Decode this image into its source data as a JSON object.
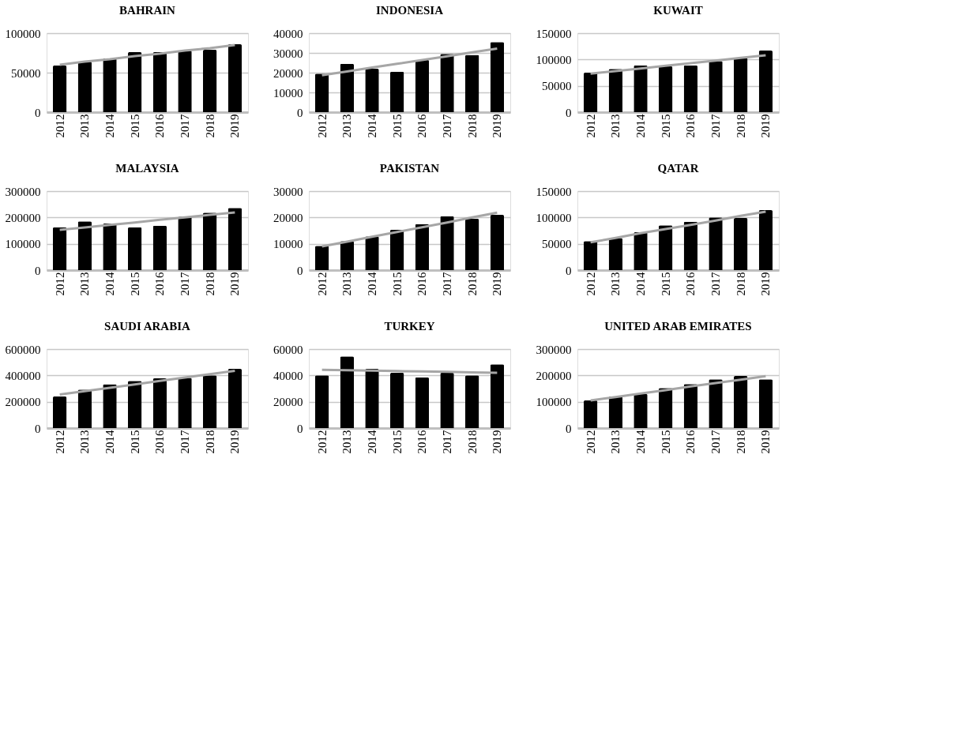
{
  "chart_data": [
    {
      "type": "bar",
      "title": "BAHRAIN",
      "categories": [
        "2012",
        "2013",
        "2014",
        "2015",
        "2016",
        "2017",
        "2018",
        "2019"
      ],
      "ylim": [
        0,
        100000
      ],
      "yticks": [
        0,
        50000,
        100000
      ],
      "grid": "y",
      "series": [
        {
          "type": "bar",
          "color": "#000000",
          "values": [
            59000,
            64000,
            68000,
            76000,
            76000,
            78000,
            79000,
            86000
          ]
        },
        {
          "type": "line",
          "color": "#a6a6a6",
          "values": [
            60000,
            64000,
            67000,
            71000,
            74000,
            78000,
            81000,
            85000
          ]
        }
      ]
    },
    {
      "type": "bar",
      "title": "INDONESIA",
      "categories": [
        "2012",
        "2013",
        "2014",
        "2015",
        "2016",
        "2017",
        "2018",
        "2019"
      ],
      "ylim": [
        0,
        40000
      ],
      "yticks": [
        0,
        10000,
        20000,
        30000,
        40000
      ],
      "grid": "y",
      "series": [
        {
          "type": "bar",
          "color": "#000000",
          "values": [
            19500,
            24500,
            22000,
            20500,
            26500,
            29500,
            29000,
            35500
          ]
        },
        {
          "type": "line",
          "color": "#a6a6a6",
          "values": [
            18700,
            20600,
            22600,
            24500,
            26400,
            28300,
            30300,
            32200
          ]
        }
      ]
    },
    {
      "type": "bar",
      "title": "KUWAIT",
      "categories": [
        "2012",
        "2013",
        "2014",
        "2015",
        "2016",
        "2017",
        "2018",
        "2019"
      ],
      "ylim": [
        0,
        150000
      ],
      "yticks": [
        0,
        50000,
        100000,
        150000
      ],
      "grid": "y",
      "series": [
        {
          "type": "bar",
          "color": "#000000",
          "values": [
            75000,
            82000,
            89000,
            87000,
            89000,
            97000,
            103000,
            117000
          ]
        },
        {
          "type": "line",
          "color": "#a6a6a6",
          "values": [
            73000,
            78000,
            83000,
            88000,
            93000,
            98000,
            103000,
            108000
          ]
        }
      ]
    },
    {
      "type": "bar",
      "title": "MALAYSIA",
      "categories": [
        "2012",
        "2013",
        "2014",
        "2015",
        "2016",
        "2017",
        "2018",
        "2019"
      ],
      "ylim": [
        0,
        300000
      ],
      "yticks": [
        0,
        100000,
        200000,
        300000
      ],
      "grid": "y",
      "series": [
        {
          "type": "bar",
          "color": "#000000",
          "values": [
            163000,
            185000,
            177000,
            163000,
            169000,
            203000,
            218000,
            236000
          ]
        },
        {
          "type": "line",
          "color": "#a6a6a6",
          "values": [
            153000,
            162000,
            172000,
            181000,
            191000,
            200000,
            210000,
            219000
          ]
        }
      ]
    },
    {
      "type": "bar",
      "title": "PAKISTAN",
      "categories": [
        "2012",
        "2013",
        "2014",
        "2015",
        "2016",
        "2017",
        "2018",
        "2019"
      ],
      "ylim": [
        0,
        30000
      ],
      "yticks": [
        0,
        10000,
        20000,
        30000
      ],
      "grid": "y",
      "series": [
        {
          "type": "bar",
          "color": "#000000",
          "values": [
            9200,
            11000,
            12800,
            15400,
            17500,
            20500,
            19500,
            21000
          ]
        },
        {
          "type": "line",
          "color": "#a6a6a6",
          "values": [
            9000,
            10800,
            12700,
            14500,
            16300,
            18100,
            20000,
            21800
          ]
        }
      ]
    },
    {
      "type": "bar",
      "title": "QATAR",
      "categories": [
        "2012",
        "2013",
        "2014",
        "2015",
        "2016",
        "2017",
        "2018",
        "2019"
      ],
      "ylim": [
        0,
        150000
      ],
      "yticks": [
        0,
        50000,
        100000,
        150000
      ],
      "grid": "y",
      "series": [
        {
          "type": "bar",
          "color": "#000000",
          "values": [
            55000,
            61000,
            72000,
            85000,
            92000,
            100000,
            99000,
            114000
          ]
        },
        {
          "type": "line",
          "color": "#a6a6a6",
          "values": [
            53000,
            61000,
            70000,
            78000,
            86000,
            94000,
            103000,
            111000
          ]
        }
      ]
    },
    {
      "type": "bar",
      "title": "SAUDI ARABIA",
      "categories": [
        "2012",
        "2013",
        "2014",
        "2015",
        "2016",
        "2017",
        "2018",
        "2019"
      ],
      "ylim": [
        0,
        600000
      ],
      "yticks": [
        0,
        200000,
        400000,
        600000
      ],
      "grid": "y",
      "series": [
        {
          "type": "bar",
          "color": "#000000",
          "values": [
            240000,
            292000,
            333000,
            358000,
            378000,
            383000,
            400000,
            450000
          ]
        },
        {
          "type": "line",
          "color": "#a6a6a6",
          "values": [
            255000,
            281000,
            306000,
            332000,
            358000,
            384000,
            409000,
            435000
          ]
        }
      ]
    },
    {
      "type": "bar",
      "title": "TURKEY",
      "categories": [
        "2012",
        "2013",
        "2014",
        "2015",
        "2016",
        "2017",
        "2018",
        "2019"
      ],
      "ylim": [
        0,
        60000
      ],
      "yticks": [
        0,
        20000,
        40000,
        60000
      ],
      "grid": "y",
      "series": [
        {
          "type": "bar",
          "color": "#000000",
          "values": [
            40000,
            54500,
            45000,
            42000,
            38500,
            42000,
            40000,
            48500
          ]
        },
        {
          "type": "line",
          "color": "#a6a6a6",
          "values": [
            44300,
            44000,
            43600,
            43300,
            43000,
            42700,
            42300,
            42000
          ]
        }
      ]
    },
    {
      "type": "bar",
      "title": "UNITED ARAB EMIRATES",
      "categories": [
        "2012",
        "2013",
        "2014",
        "2015",
        "2016",
        "2017",
        "2018",
        "2019"
      ],
      "ylim": [
        0,
        300000
      ],
      "yticks": [
        0,
        100000,
        200000,
        300000
      ],
      "grid": "y",
      "series": [
        {
          "type": "bar",
          "color": "#000000",
          "values": [
            105000,
            120000,
            130000,
            152000,
            167000,
            185000,
            198000,
            185000
          ]
        },
        {
          "type": "line",
          "color": "#a6a6a6",
          "values": [
            105000,
            118000,
            131000,
            144000,
            158000,
            171000,
            184000,
            197000
          ]
        }
      ]
    }
  ]
}
